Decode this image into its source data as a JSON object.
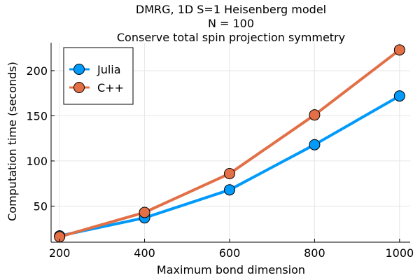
{
  "chart_data": {
    "type": "line",
    "title_lines": [
      "DMRG, 1D S=1 Heisenberg model",
      "N = 100",
      "Conserve total spin projection symmetry"
    ],
    "xlabel": "Maximum bond dimension",
    "ylabel": "Computation time (seconds)",
    "x": [
      200,
      400,
      600,
      800,
      1000
    ],
    "xticks": [
      200,
      400,
      600,
      800,
      1000
    ],
    "yticks": [
      50,
      100,
      150,
      200
    ],
    "xlim": [
      180,
      1025
    ],
    "ylim": [
      10,
      231
    ],
    "grid": true,
    "legend_position": "top-left",
    "series": [
      {
        "name": "Julia",
        "color": "#009AFA",
        "values": [
          17,
          37,
          68,
          118,
          172
        ]
      },
      {
        "name": "C++",
        "color": "#E26F46",
        "values": [
          16,
          43,
          86,
          151,
          223
        ]
      }
    ]
  }
}
